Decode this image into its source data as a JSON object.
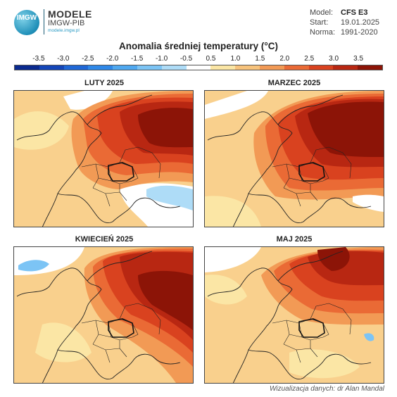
{
  "header": {
    "logo_badge": "IMGW",
    "brand_line1": "MODELE",
    "brand_line2": "IMGW-PIB",
    "brand_line3": "modele.imgw.pl",
    "meta": [
      {
        "label": "Model:",
        "value": "CFS E3"
      },
      {
        "label": "Start:",
        "value": "19.01.2025"
      },
      {
        "label": "Norma:",
        "value": "1991-2020"
      }
    ]
  },
  "title": "Anomalia średniej temperatury (°C)",
  "legend": {
    "ticks": [
      "-3.5",
      "-3.0",
      "-2.5",
      "-2.0",
      "-1.5",
      "-1.0",
      "-0.5",
      "0.5",
      "1.0",
      "1.5",
      "2.0",
      "2.5",
      "3.0",
      "3.5"
    ],
    "colors": [
      "#0a2a8f",
      "#1446b8",
      "#1f67d6",
      "#2f88e8",
      "#4fa8f0",
      "#7cc4f5",
      "#aedcf7",
      "#ffffff",
      "#fbe6a5",
      "#f7c37c",
      "#f29a55",
      "#ea6a35",
      "#d9421f",
      "#b82712",
      "#8c1407"
    ]
  },
  "panels": [
    {
      "title": "LUTY 2025"
    },
    {
      "title": "MARZEC 2025"
    },
    {
      "title": "KWIECIEŃ 2025"
    },
    {
      "title": "MAJ 2025"
    }
  ],
  "credit": "Wizualizacja danych: dr Alan Mandal"
}
